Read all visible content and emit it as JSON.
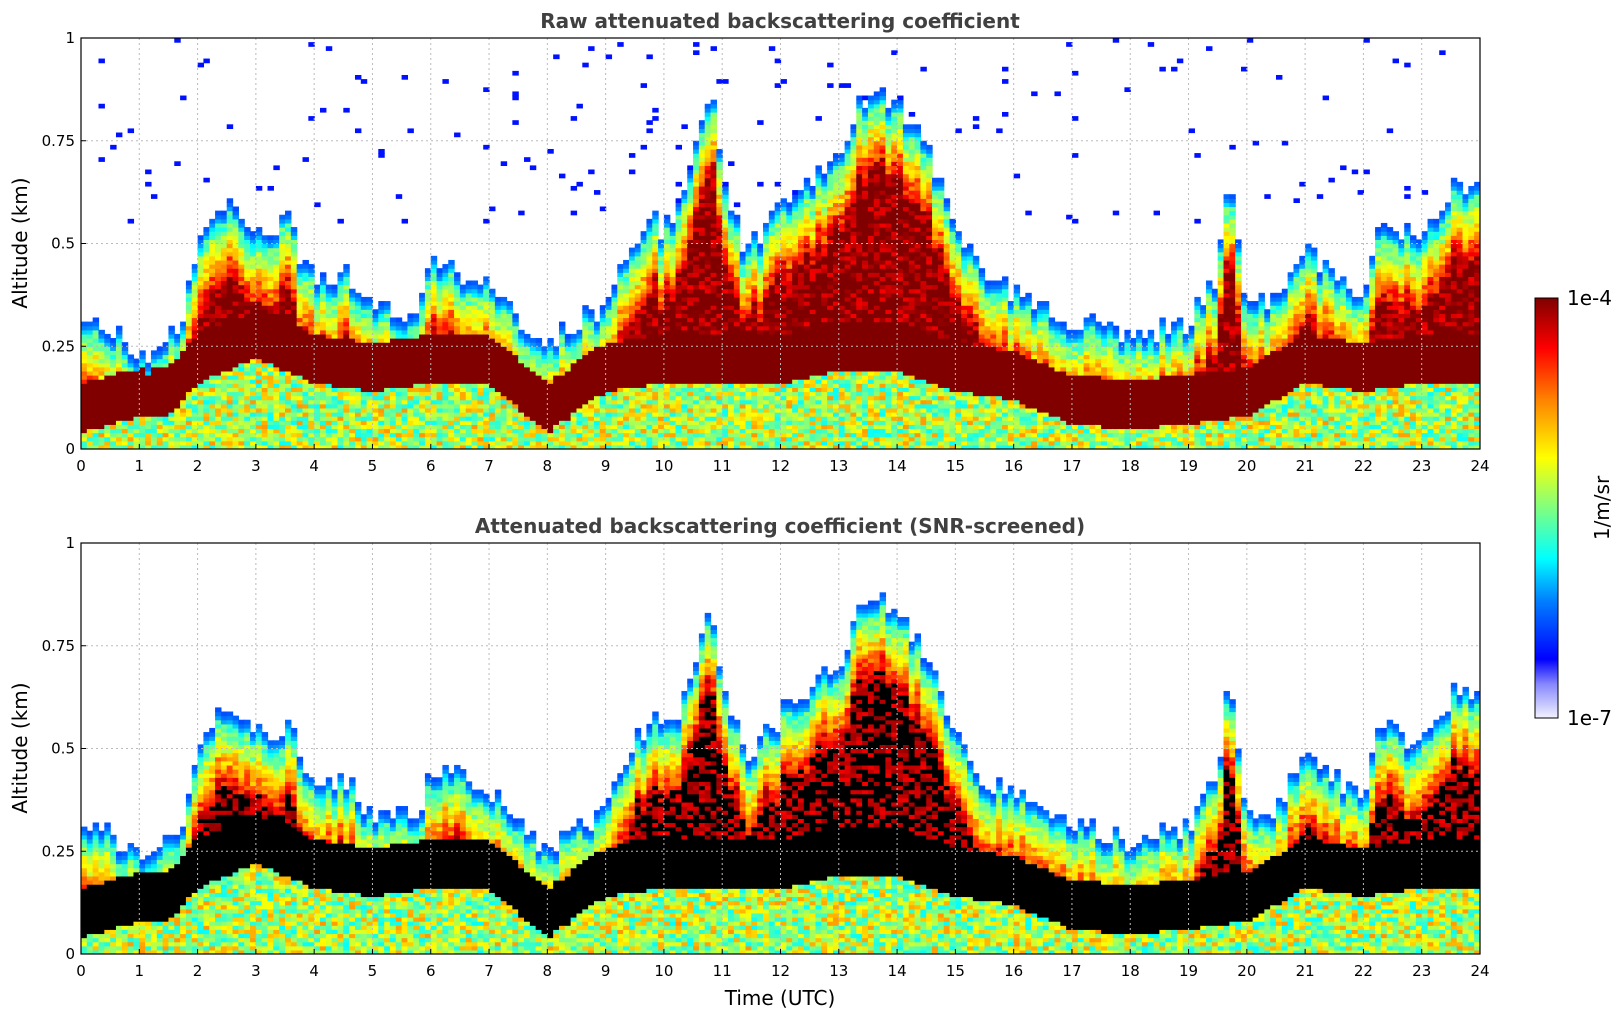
{
  "colors": {
    "title": "#404040",
    "grid": "#bbbbbb",
    "saturated_screened": "#000000",
    "saturated_raw": "#800000"
  },
  "colormap": "jet-with-faint-low-end",
  "chart_data": [
    {
      "type": "heatmap",
      "title": "Raw attenuated backscattering coefficient",
      "xlabel": "",
      "ylabel": "Altitude (km)",
      "xlim": [
        0,
        24
      ],
      "ylim": [
        0,
        1
      ],
      "xticks": [
        "0",
        "1",
        "2",
        "3",
        "4",
        "5",
        "6",
        "7",
        "8",
        "9",
        "10",
        "11",
        "12",
        "13",
        "14",
        "15",
        "16",
        "17",
        "18",
        "19",
        "20",
        "21",
        "22",
        "23",
        "24"
      ],
      "yticks": [
        "0",
        "0.25",
        "0.5",
        "0.75",
        "1"
      ],
      "grid": true,
      "screened": false,
      "layer_top_km": [
        [
          0,
          0.3
        ],
        [
          0.5,
          0.26
        ],
        [
          1,
          0.2
        ],
        [
          1.5,
          0.24
        ],
        [
          1.8,
          0.32
        ],
        [
          2,
          0.45
        ],
        [
          2.5,
          0.58
        ],
        [
          3,
          0.52
        ],
        [
          3.3,
          0.5
        ],
        [
          3.6,
          0.55
        ],
        [
          3.8,
          0.42
        ],
        [
          4.2,
          0.38
        ],
        [
          4.6,
          0.4
        ],
        [
          4.8,
          0.32
        ],
        [
          5.2,
          0.31
        ],
        [
          5.8,
          0.3
        ],
        [
          6,
          0.42
        ],
        [
          6.5,
          0.4
        ],
        [
          7,
          0.38
        ],
        [
          7.5,
          0.3
        ],
        [
          8,
          0.22
        ],
        [
          8.5,
          0.28
        ],
        [
          9,
          0.32
        ],
        [
          9.5,
          0.48
        ],
        [
          9.8,
          0.55
        ],
        [
          10,
          0.5
        ],
        [
          10.4,
          0.6
        ],
        [
          10.8,
          0.85
        ],
        [
          11,
          0.65
        ],
        [
          11.4,
          0.45
        ],
        [
          12,
          0.55
        ],
        [
          12.5,
          0.62
        ],
        [
          13,
          0.68
        ],
        [
          13.5,
          0.85
        ],
        [
          14,
          0.82
        ],
        [
          14.5,
          0.7
        ],
        [
          15,
          0.52
        ],
        [
          15.5,
          0.38
        ],
        [
          16,
          0.36
        ],
        [
          17,
          0.28
        ],
        [
          18,
          0.25
        ],
        [
          19,
          0.28
        ],
        [
          19.5,
          0.4
        ],
        [
          19.7,
          0.65
        ],
        [
          20,
          0.32
        ],
        [
          20.5,
          0.33
        ],
        [
          21,
          0.45
        ],
        [
          21.5,
          0.4
        ],
        [
          22,
          0.35
        ],
        [
          22.3,
          0.55
        ],
        [
          22.6,
          0.5
        ],
        [
          23,
          0.48
        ],
        [
          23.5,
          0.6
        ],
        [
          24,
          0.62
        ]
      ],
      "layer_core_km": [
        [
          0,
          0.1
        ],
        [
          1,
          0.14
        ],
        [
          1.5,
          0.14
        ],
        [
          2,
          0.22
        ],
        [
          3,
          0.28
        ],
        [
          4,
          0.22
        ],
        [
          5,
          0.2
        ],
        [
          6,
          0.22
        ],
        [
          7,
          0.22
        ],
        [
          8,
          0.1
        ],
        [
          9,
          0.2
        ],
        [
          10,
          0.22
        ],
        [
          11,
          0.22
        ],
        [
          12,
          0.22
        ],
        [
          13,
          0.25
        ],
        [
          14,
          0.25
        ],
        [
          15,
          0.2
        ],
        [
          16,
          0.18
        ],
        [
          17,
          0.12
        ],
        [
          18,
          0.11
        ],
        [
          19,
          0.12
        ],
        [
          20,
          0.14
        ],
        [
          21,
          0.22
        ],
        [
          22,
          0.2
        ],
        [
          23,
          0.22
        ],
        [
          24,
          0.22
        ]
      ],
      "colorbar": {
        "label": "1/m/sr",
        "max": "1e-4",
        "min": "1e-7"
      }
    },
    {
      "type": "heatmap",
      "title": "Attenuated backscattering coefficient (SNR-screened)",
      "xlabel": "Time (UTC)",
      "ylabel": "Altitude (km)",
      "xlim": [
        0,
        24
      ],
      "ylim": [
        0,
        1
      ],
      "xticks": [
        "0",
        "1",
        "2",
        "3",
        "4",
        "5",
        "6",
        "7",
        "8",
        "9",
        "10",
        "11",
        "12",
        "13",
        "14",
        "15",
        "16",
        "17",
        "18",
        "19",
        "20",
        "21",
        "22",
        "23",
        "24"
      ],
      "yticks": [
        "0",
        "0.25",
        "0.5",
        "0.75",
        "1"
      ],
      "grid": true,
      "screened": true,
      "layer_top_km": [
        [
          0,
          0.3
        ],
        [
          0.5,
          0.26
        ],
        [
          1,
          0.2
        ],
        [
          1.5,
          0.24
        ],
        [
          1.8,
          0.32
        ],
        [
          2,
          0.45
        ],
        [
          2.5,
          0.58
        ],
        [
          3,
          0.52
        ],
        [
          3.3,
          0.5
        ],
        [
          3.6,
          0.55
        ],
        [
          3.8,
          0.42
        ],
        [
          4.2,
          0.38
        ],
        [
          4.6,
          0.4
        ],
        [
          4.8,
          0.32
        ],
        [
          5.2,
          0.31
        ],
        [
          5.8,
          0.3
        ],
        [
          6,
          0.42
        ],
        [
          6.5,
          0.4
        ],
        [
          7,
          0.38
        ],
        [
          7.5,
          0.3
        ],
        [
          8,
          0.22
        ],
        [
          8.5,
          0.28
        ],
        [
          9,
          0.32
        ],
        [
          9.5,
          0.48
        ],
        [
          9.8,
          0.55
        ],
        [
          10,
          0.5
        ],
        [
          10.4,
          0.6
        ],
        [
          10.8,
          0.85
        ],
        [
          11,
          0.65
        ],
        [
          11.4,
          0.45
        ],
        [
          12,
          0.55
        ],
        [
          12.5,
          0.62
        ],
        [
          13,
          0.68
        ],
        [
          13.5,
          0.85
        ],
        [
          14,
          0.82
        ],
        [
          14.5,
          0.7
        ],
        [
          15,
          0.52
        ],
        [
          15.5,
          0.38
        ],
        [
          16,
          0.36
        ],
        [
          17,
          0.28
        ],
        [
          18,
          0.25
        ],
        [
          19,
          0.28
        ],
        [
          19.5,
          0.4
        ],
        [
          19.7,
          0.65
        ],
        [
          20,
          0.32
        ],
        [
          20.5,
          0.33
        ],
        [
          21,
          0.45
        ],
        [
          21.5,
          0.4
        ],
        [
          22,
          0.35
        ],
        [
          22.3,
          0.55
        ],
        [
          22.6,
          0.5
        ],
        [
          23,
          0.48
        ],
        [
          23.5,
          0.6
        ],
        [
          24,
          0.62
        ]
      ],
      "layer_core_km": [
        [
          0,
          0.1
        ],
        [
          1,
          0.14
        ],
        [
          1.5,
          0.14
        ],
        [
          2,
          0.22
        ],
        [
          3,
          0.28
        ],
        [
          4,
          0.22
        ],
        [
          5,
          0.2
        ],
        [
          6,
          0.22
        ],
        [
          7,
          0.22
        ],
        [
          8,
          0.1
        ],
        [
          9,
          0.2
        ],
        [
          10,
          0.22
        ],
        [
          11,
          0.22
        ],
        [
          12,
          0.22
        ],
        [
          13,
          0.25
        ],
        [
          14,
          0.25
        ],
        [
          15,
          0.2
        ],
        [
          16,
          0.18
        ],
        [
          17,
          0.12
        ],
        [
          18,
          0.11
        ],
        [
          19,
          0.12
        ],
        [
          20,
          0.14
        ],
        [
          21,
          0.22
        ],
        [
          22,
          0.2
        ],
        [
          23,
          0.22
        ],
        [
          24,
          0.22
        ]
      ],
      "colorbar": {
        "label": "1/m/sr",
        "max": "1e-4",
        "min": "1e-7"
      }
    }
  ]
}
